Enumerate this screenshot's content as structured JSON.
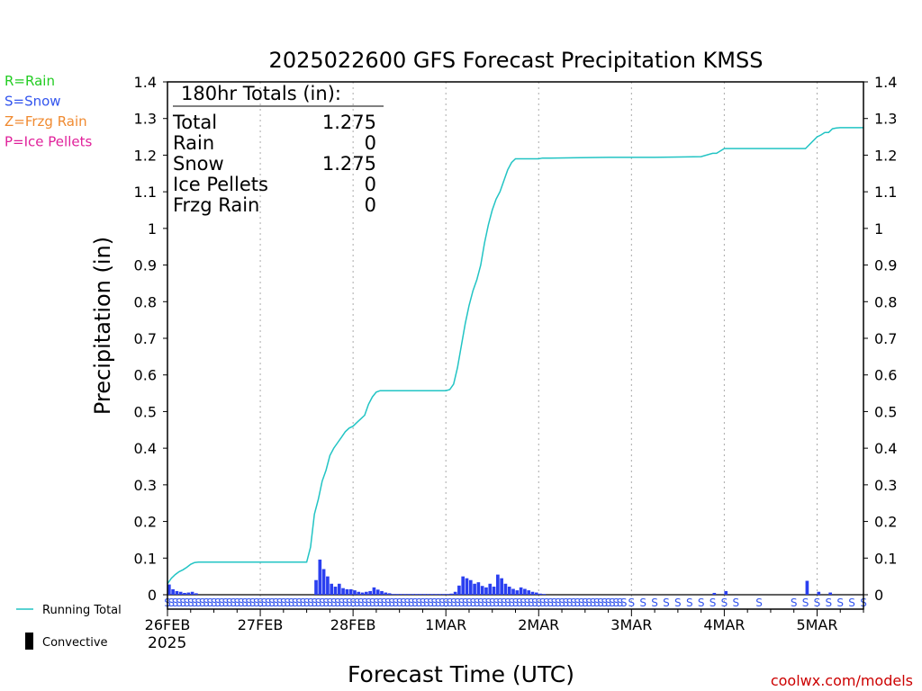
{
  "chart_data": {
    "type": "line",
    "title": "2025022600 GFS Forecast Precipitation KMSS",
    "ylabel": "Precipitation (in)",
    "xlabel": "Forecast Time (UTC)",
    "ylim": [
      0,
      1.4
    ],
    "xlim_hours": [
      0,
      180
    ],
    "y_ticks": [
      "0",
      "0.1",
      "0.2",
      "0.3",
      "0.4",
      "0.5",
      "0.6",
      "0.7",
      "0.8",
      "0.9",
      "1",
      "1.1",
      "1.2",
      "1.3",
      "1.4"
    ],
    "x_ticks": [
      {
        "hour": 0,
        "label": "26FEB"
      },
      {
        "hour": 24,
        "label": "27FEB"
      },
      {
        "hour": 48,
        "label": "28FEB"
      },
      {
        "hour": 72,
        "label": "1MAR"
      },
      {
        "hour": 96,
        "label": "2MAR"
      },
      {
        "hour": 120,
        "label": "3MAR"
      },
      {
        "hour": 144,
        "label": "4MAR"
      },
      {
        "hour": 168,
        "label": "5MAR"
      }
    ],
    "year_label": "2025",
    "legend_types": [
      {
        "text": "R=Rain",
        "color": "#22cc22"
      },
      {
        "text": "S=Snow",
        "color": "#3355ee"
      },
      {
        "text": "Z=Frzg Rain",
        "color": "#f08a30"
      },
      {
        "text": "P=Ice Pellets",
        "color": "#e0209a"
      }
    ],
    "legend_bottom": [
      {
        "text": "Running Total",
        "color": "#22c4c4"
      },
      {
        "text": "Convective",
        "color": "#000000"
      }
    ],
    "totals": {
      "header": "180hr Totals (in):",
      "rows": [
        {
          "label": "Total",
          "value": "1.275"
        },
        {
          "label": "Rain",
          "value": "0"
        },
        {
          "label": "Snow",
          "value": "1.275"
        },
        {
          "label": "Ice Pellets",
          "value": "0"
        },
        {
          "label": "Frzg Rain",
          "value": "0"
        }
      ]
    },
    "credit": "coolwx.com/models",
    "series": [
      {
        "name": "Running Total",
        "color": "#22c4c4",
        "x_hours": [
          0,
          1,
          2,
          3,
          4,
          5,
          6,
          7,
          8,
          24,
          36,
          37,
          38,
          39,
          40,
          41,
          42,
          43,
          44,
          45,
          46,
          47,
          48,
          49,
          50,
          51,
          52,
          53,
          54,
          55,
          56,
          57,
          58,
          60,
          66,
          72,
          73,
          74,
          75,
          76,
          77,
          78,
          79,
          80,
          81,
          82,
          83,
          84,
          85,
          86,
          87,
          88,
          89,
          90,
          91,
          92,
          93,
          94,
          95,
          96,
          97,
          99,
          114,
          126,
          138,
          141,
          142,
          144,
          150,
          165,
          168,
          169,
          170,
          171,
          172,
          173,
          174,
          180
        ],
        "values": [
          0.03,
          0.045,
          0.055,
          0.063,
          0.068,
          0.075,
          0.083,
          0.088,
          0.089,
          0.089,
          0.089,
          0.13,
          0.22,
          0.26,
          0.31,
          0.34,
          0.38,
          0.4,
          0.415,
          0.43,
          0.445,
          0.455,
          0.46,
          0.47,
          0.48,
          0.49,
          0.52,
          0.54,
          0.553,
          0.557,
          0.557,
          0.557,
          0.557,
          0.557,
          0.557,
          0.557,
          0.56,
          0.575,
          0.62,
          0.68,
          0.74,
          0.79,
          0.83,
          0.86,
          0.9,
          0.96,
          1.01,
          1.05,
          1.08,
          1.1,
          1.13,
          1.16,
          1.18,
          1.19,
          1.19,
          1.19,
          1.19,
          1.19,
          1.19,
          1.19,
          1.192,
          1.192,
          1.194,
          1.194,
          1.196,
          1.205,
          1.205,
          1.218,
          1.218,
          1.218,
          1.25,
          1.255,
          1.262,
          1.262,
          1.272,
          1.274,
          1.275,
          1.275
        ]
      },
      {
        "name": "Convective",
        "type": "bar",
        "color": "#2a3ff0",
        "x_hours": [
          0,
          1,
          2,
          3,
          4,
          5,
          6,
          7,
          38,
          39,
          40,
          41,
          42,
          43,
          44,
          45,
          46,
          47,
          48,
          49,
          50,
          51,
          52,
          53,
          54,
          55,
          56,
          57,
          58,
          59,
          60,
          61,
          62,
          63,
          64,
          65,
          66,
          67,
          68,
          69,
          70,
          71,
          72,
          73,
          74,
          75,
          76,
          77,
          78,
          79,
          80,
          81,
          82,
          83,
          84,
          85,
          86,
          87,
          88,
          89,
          90,
          91,
          92,
          93,
          94,
          95,
          96,
          97,
          144,
          141,
          165,
          168,
          171
        ],
        "values": [
          0.028,
          0.015,
          0.01,
          0.008,
          0.005,
          0.006,
          0.008,
          0.004,
          0.04,
          0.096,
          0.07,
          0.05,
          0.03,
          0.022,
          0.03,
          0.018,
          0.015,
          0.015,
          0.012,
          0.008,
          0.006,
          0.008,
          0.01,
          0.02,
          0.014,
          0.01,
          0.006,
          0.004,
          0.002,
          0.002,
          0.002,
          0.002,
          0.002,
          0.002,
          0.002,
          0.002,
          0.002,
          0.002,
          0.002,
          0.002,
          0.002,
          0.002,
          0.002,
          0.003,
          0.008,
          0.025,
          0.05,
          0.045,
          0.04,
          0.03,
          0.034,
          0.024,
          0.02,
          0.03,
          0.022,
          0.055,
          0.045,
          0.03,
          0.022,
          0.016,
          0.012,
          0.02,
          0.016,
          0.012,
          0.008,
          0.006,
          0.003,
          0.002,
          0.01,
          0.005,
          0.038,
          0.008,
          0.006
        ]
      }
    ],
    "ptype_marks": {
      "symbol": "S",
      "color": "#3355ee",
      "x_hours": [
        0,
        1,
        2,
        3,
        4,
        5,
        6,
        7,
        8,
        9,
        10,
        11,
        12,
        13,
        14,
        15,
        16,
        17,
        18,
        19,
        20,
        21,
        22,
        23,
        24,
        25,
        26,
        27,
        28,
        29,
        30,
        31,
        32,
        33,
        34,
        35,
        36,
        37,
        38,
        39,
        40,
        41,
        42,
        43,
        44,
        45,
        46,
        47,
        48,
        49,
        50,
        51,
        52,
        53,
        54,
        55,
        56,
        57,
        58,
        59,
        60,
        61,
        62,
        63,
        64,
        65,
        66,
        67,
        68,
        69,
        70,
        71,
        72,
        73,
        74,
        75,
        76,
        77,
        78,
        79,
        80,
        81,
        82,
        83,
        84,
        85,
        86,
        87,
        88,
        89,
        90,
        91,
        92,
        93,
        94,
        95,
        96,
        97,
        98,
        99,
        100,
        101,
        102,
        103,
        104,
        105,
        106,
        107,
        108,
        109,
        110,
        111,
        112,
        113,
        114,
        115,
        116,
        117,
        118,
        120,
        123,
        126,
        129,
        132,
        135,
        138,
        141,
        144,
        147,
        153,
        162,
        165,
        168,
        171,
        174,
        177,
        180
      ]
    }
  }
}
